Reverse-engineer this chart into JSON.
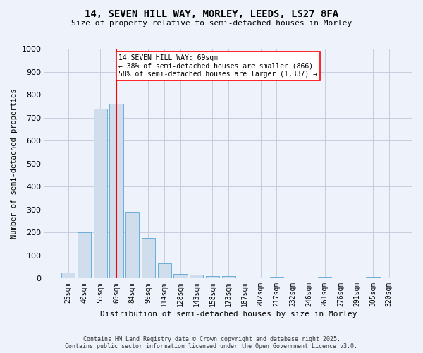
{
  "title_line1": "14, SEVEN HILL WAY, MORLEY, LEEDS, LS27 8FA",
  "title_line2": "Size of property relative to semi-detached houses in Morley",
  "xlabel": "Distribution of semi-detached houses by size in Morley",
  "ylabel": "Number of semi-detached properties",
  "footer_line1": "Contains HM Land Registry data © Crown copyright and database right 2025.",
  "footer_line2": "Contains public sector information licensed under the Open Government Licence v3.0.",
  "annotation_title": "14 SEVEN HILL WAY: 69sqm",
  "annotation_line1": "← 38% of semi-detached houses are smaller (866)",
  "annotation_line2": "58% of semi-detached houses are larger (1,337) →",
  "bar_color": "#cfdded",
  "bar_edge_color": "#6aaed6",
  "vline_color": "red",
  "background_color": "#eef2fb",
  "plot_bg_color": "#eef2fb",
  "categories": [
    "25sqm",
    "40sqm",
    "55sqm",
    "69sqm",
    "84sqm",
    "99sqm",
    "114sqm",
    "128sqm",
    "143sqm",
    "158sqm",
    "173sqm",
    "187sqm",
    "202sqm",
    "217sqm",
    "232sqm",
    "246sqm",
    "261sqm",
    "276sqm",
    "291sqm",
    "305sqm",
    "320sqm"
  ],
  "values": [
    25,
    200,
    740,
    760,
    290,
    175,
    65,
    20,
    15,
    10,
    10,
    0,
    0,
    5,
    0,
    0,
    5,
    0,
    0,
    5,
    0
  ],
  "ylim": [
    0,
    1000
  ],
  "yticks": [
    0,
    100,
    200,
    300,
    400,
    500,
    600,
    700,
    800,
    900,
    1000
  ],
  "vline_x_idx": 3,
  "grid_color": "#c0c8d8",
  "ylabel_fontsize": 7.5,
  "xlabel_fontsize": 8,
  "title1_fontsize": 10,
  "title2_fontsize": 8,
  "tick_fontsize": 7,
  "ann_fontsize": 7,
  "footer_fontsize": 6
}
